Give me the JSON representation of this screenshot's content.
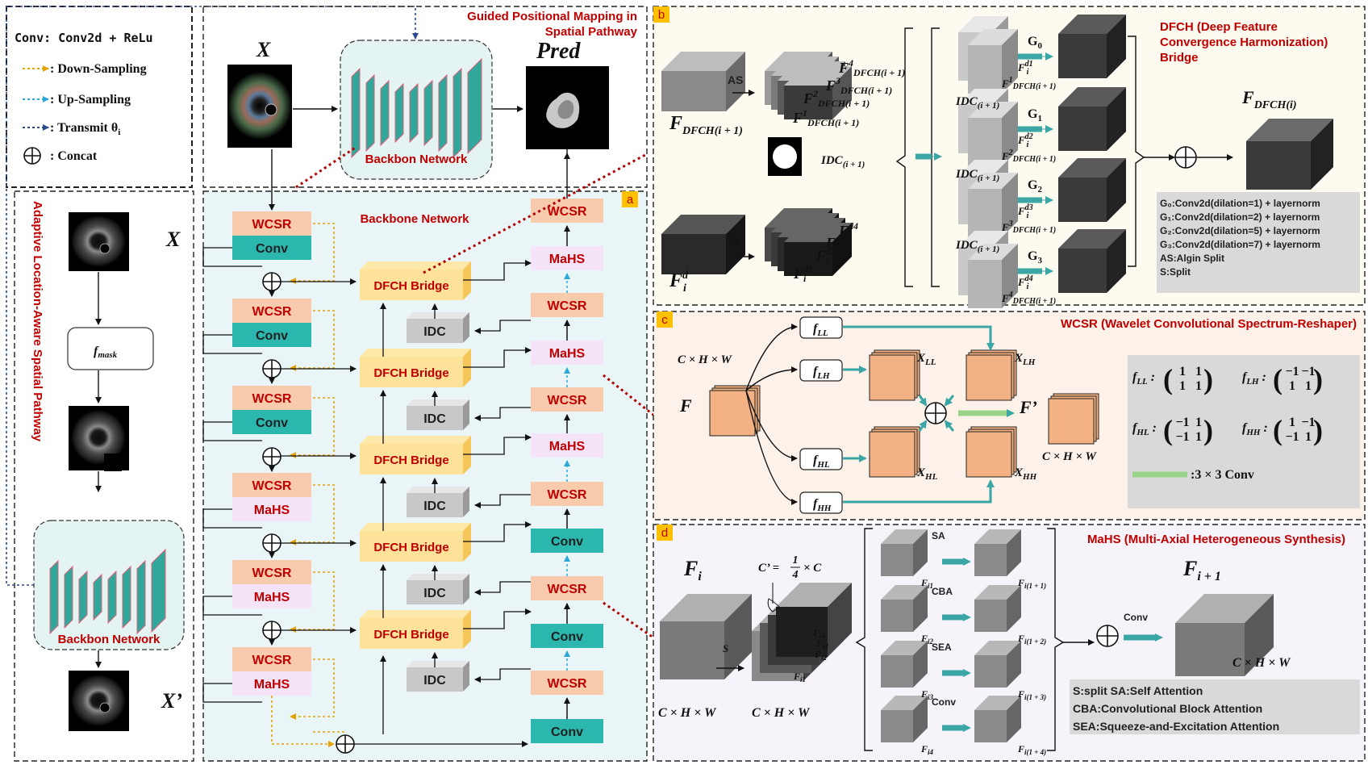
{
  "legend": {
    "conv": "Conv: Conv2d + ReLu",
    "down": ": Down-Sampling",
    "up": ": Up-Sampling",
    "transmit": ": Transmit θ",
    "transmit_sub": "i",
    "concat": ": Concat"
  },
  "top": {
    "title_line1": "Guided Positional Mapping in",
    "title_line2": "Spatial Pathway",
    "x_label": "X",
    "pred_label": "Pred",
    "backbone_label": "Backbon Network"
  },
  "left_pathway": {
    "title": "Adaptive Location-Aware Spatial Pathway",
    "x_label": "X",
    "fmask_main": "f",
    "fmask_sub": "mask",
    "backbone_label": "Backbon Network",
    "xprime_label": "X’"
  },
  "panel_a": {
    "tag": "a",
    "title": "Backbone Network",
    "encoder": [
      {
        "top": "WCSR",
        "bottom": "Conv"
      },
      {
        "top": "WCSR",
        "bottom": "Conv"
      },
      {
        "top": "WCSR",
        "bottom": "Conv"
      },
      {
        "top": "WCSR",
        "bottom": "MaHS"
      },
      {
        "top": "WCSR",
        "bottom": "MaHS"
      },
      {
        "top": "WCSR",
        "bottom": "MaHS"
      }
    ],
    "bridge": "DFCH Bridge",
    "idc": "IDC",
    "decoder": [
      "Conv",
      "WCSR",
      "Conv",
      "WCSR",
      "Conv",
      "WCSR",
      "MaHS",
      "WCSR",
      "MaHS",
      "WCSR",
      "MaHS",
      "WCSR"
    ]
  },
  "panel_b": {
    "tag": "b",
    "title_line1": "DFCH (Deep Feature",
    "title_line2": "Convergence Harmonization)",
    "title_line3": "Bridge",
    "as_label": "AS",
    "s_label": "S",
    "input_top": "F",
    "input_top_sub": "DFCH(i + 1)",
    "input_bottom": "F",
    "input_bottom_sup": "d",
    "input_bottom_sub": "i",
    "idc_mask_label": "IDC",
    "idc_mask_sub": "(i + 1)",
    "f_splits": [
      "1",
      "2",
      "3",
      "4"
    ],
    "fd_splits": [
      "d1",
      "d2",
      "d3",
      "d4"
    ],
    "groups": [
      "G",
      "G",
      "G",
      "G"
    ],
    "group_subs": [
      "0",
      "1",
      "2",
      "3"
    ],
    "output": "F",
    "output_sub": "DFCH(i)",
    "notes": [
      "G₀:Conv2d(dilation=1) + layernorm",
      "G₁:Conv2d(dilation=2) + layernorm",
      "G₂:Conv2d(dilation=5) + layernorm",
      "G₃:Conv2d(dilation=7) + layernorm",
      "AS:Algin Split",
      "S:Split"
    ]
  },
  "panel_c": {
    "tag": "c",
    "title": "WCSR  (Wavelet Convolutional Spectrum-Reshaper)",
    "input": "F",
    "input_dim": "C × H × W",
    "filters": [
      "LL",
      "LH",
      "HL",
      "HH"
    ],
    "outputs": [
      "LL",
      "LH",
      "HL",
      "HH"
    ],
    "output": "F’",
    "output_dim": "C × H × W",
    "conv_legend": ":3 × 3 Conv",
    "matrices": [
      {
        "name": "LL",
        "m": [
          [
            "1",
            "1"
          ],
          [
            "1",
            "1"
          ]
        ]
      },
      {
        "name": "LH",
        "m": [
          [
            "−1",
            "−1"
          ],
          [
            "1",
            "1"
          ]
        ]
      },
      {
        "name": "HL",
        "m": [
          [
            "−1",
            "1"
          ],
          [
            "−1",
            "1"
          ]
        ]
      },
      {
        "name": "HH",
        "m": [
          [
            "1",
            "−1"
          ],
          [
            "−1",
            "1"
          ]
        ]
      }
    ]
  },
  "panel_d": {
    "tag": "d",
    "title": "MaHS (Multi-Axial Heterogeneous Synthesis)",
    "input": "F",
    "input_sub": "i",
    "input_dim": "C × H × W",
    "split_dim": "C × H × W",
    "s_label": "S",
    "cprime": "C’ =",
    "cprime_num": "1",
    "cprime_den": "4",
    "cprime_tail": "× C",
    "branches": [
      "SA",
      "CBA",
      "SEA",
      "Conv"
    ],
    "branch_in": [
      "i1",
      "i2",
      "i3",
      "i4"
    ],
    "branch_out": [
      "i(1 + 1)",
      "i(1 + 2)",
      "i(1 + 3)",
      "i(1 + 4)"
    ],
    "conv_label": "Conv",
    "output": "F",
    "output_sub": "i + 1",
    "output_dim": "C × H × W",
    "notes": [
      "S:split   SA:Self Attention",
      "CBA:Convolutional Block Attention",
      "SEA:Squeeze-and-Excitation Attention"
    ]
  }
}
